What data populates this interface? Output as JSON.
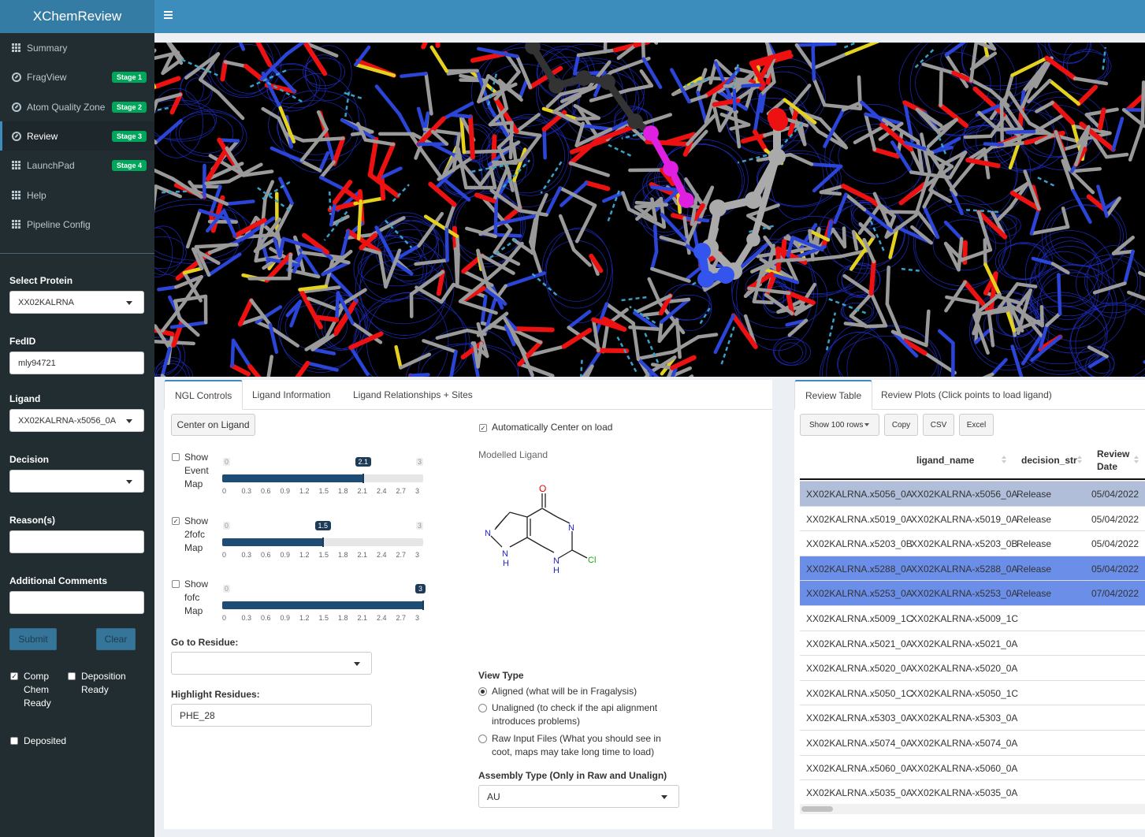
{
  "app": {
    "title": "XChemReview"
  },
  "sidebar": {
    "items": [
      {
        "label": "Summary",
        "icon": "grid-icon",
        "badge": ""
      },
      {
        "label": "FragView",
        "icon": "gauge-icon",
        "badge": "Stage 1"
      },
      {
        "label": "Atom Quality Zone",
        "icon": "gauge-icon",
        "badge": "Stage 2"
      },
      {
        "label": "Review",
        "icon": "gauge-icon",
        "badge": "Stage 3"
      },
      {
        "label": "LaunchPad",
        "icon": "grid-icon",
        "badge": "Stage 4"
      },
      {
        "label": "Help",
        "icon": "grid-icon",
        "badge": ""
      },
      {
        "label": "Pipeline Config",
        "icon": "grid-icon",
        "badge": ""
      }
    ],
    "active_index": 3,
    "form": {
      "protein_label": "Select Protein",
      "protein_value": "XX02KALRNA",
      "fedid_label": "FedID",
      "fedid_value": "mly94721",
      "ligand_label": "Ligand",
      "ligand_value": "XX02KALRNA-x5056_0A",
      "decision_label": "Decision",
      "decision_value": "",
      "reasons_label": "Reason(s)",
      "reasons_value": "",
      "comments_label": "Additional Comments",
      "comments_value": "",
      "submit_label": "Submit",
      "clear_label": "Clear",
      "comp_chem_label": "Comp Chem Ready",
      "comp_chem_checked": true,
      "deposition_label": "Deposition Ready",
      "deposition_checked": false,
      "deposited_label": "Deposited",
      "deposited_checked": false
    }
  },
  "controls": {
    "tabs": [
      "NGL Controls",
      "Ligand Information",
      "Ligand Relationships + Sites"
    ],
    "active_tab": 0,
    "center_button": "Center on Ligand",
    "auto_center_label": "Automatically Center on load",
    "auto_center_checked": true,
    "modelled_ligand_label": "Modelled Ligand",
    "sliders": [
      {
        "label": "Show Event Map",
        "checked": false,
        "min": "0",
        "max": "3",
        "value": "2.1",
        "fraction": 0.7
      },
      {
        "label": "Show 2fofc Map",
        "checked": true,
        "min": "0",
        "max": "3",
        "value": "1.5",
        "fraction": 0.5
      },
      {
        "label": "Show fofc Map",
        "checked": false,
        "min": "0",
        "max": "3",
        "value": "3",
        "fraction": 1.0
      }
    ],
    "ticks": [
      "0",
      "0.3",
      "0.6",
      "0.9",
      "1.2",
      "1.5",
      "1.8",
      "2.1",
      "2.4",
      "2.7",
      "3"
    ],
    "goto_label": "Go to Residue:",
    "goto_value": "",
    "highlight_label": "Highlight Residues:",
    "highlight_value": "PHE_28",
    "view_type_label": "View Type",
    "view_types": [
      {
        "label": "Aligned (what will be in Fragalysis)",
        "selected": true
      },
      {
        "label": "Unaligned (to check if the api alignment introduces problems)",
        "selected": false
      },
      {
        "label": "Raw Input Files (What you should see in coot, maps may take long time to load)",
        "selected": false
      }
    ],
    "assembly_label": "Assembly Type (Only in Raw and Unalign)",
    "assembly_value": "AU",
    "molecule_atoms": {
      "o": "O",
      "n1": "N",
      "n2": "N",
      "n3": "N",
      "n4": "N",
      "h1": "H",
      "h2": "H",
      "cl": "Cl"
    }
  },
  "review": {
    "tabs": [
      "Review Table",
      "Review Plots (Click points to load ligand)"
    ],
    "active_tab": 0,
    "buttons": {
      "show_rows": "Show 100 rows",
      "copy": "Copy",
      "csv": "CSV",
      "excel": "Excel"
    },
    "columns": [
      "",
      "ligand_name",
      "decision_str",
      "Review Date"
    ],
    "rows": [
      {
        "id": "XX02KALRNA.x5056_0A",
        "ligand": "XX02KALRNA-x5056_0A",
        "decision": "Release",
        "date": "05/04/2022",
        "selected": "light"
      },
      {
        "id": "XX02KALRNA.x5019_0A",
        "ligand": "XX02KALRNA-x5019_0A",
        "decision": "Release",
        "date": "05/04/2022",
        "selected": ""
      },
      {
        "id": "XX02KALRNA.x5203_0B",
        "ligand": "XX02KALRNA-x5203_0B",
        "decision": "Release",
        "date": "05/04/2022",
        "selected": ""
      },
      {
        "id": "XX02KALRNA.x5288_0A",
        "ligand": "XX02KALRNA-x5288_0A",
        "decision": "Release",
        "date": "05/04/2022",
        "selected": "dark"
      },
      {
        "id": "XX02KALRNA.x5253_0A",
        "ligand": "XX02KALRNA-x5253_0A",
        "decision": "Release",
        "date": "07/04/2022",
        "selected": "dark"
      },
      {
        "id": "XX02KALRNA.x5009_1C",
        "ligand": "XX02KALRNA-x5009_1C",
        "decision": "",
        "date": "",
        "selected": ""
      },
      {
        "id": "XX02KALRNA.x5021_0A",
        "ligand": "XX02KALRNA-x5021_0A",
        "decision": "",
        "date": "",
        "selected": ""
      },
      {
        "id": "XX02KALRNA.x5020_0A",
        "ligand": "XX02KALRNA-x5020_0A",
        "decision": "",
        "date": "",
        "selected": ""
      },
      {
        "id": "XX02KALRNA.x5050_1C",
        "ligand": "XX02KALRNA-x5050_1C",
        "decision": "",
        "date": "",
        "selected": ""
      },
      {
        "id": "XX02KALRNA.x5303_0A",
        "ligand": "XX02KALRNA-x5303_0A",
        "decision": "",
        "date": "",
        "selected": ""
      },
      {
        "id": "XX02KALRNA.x5074_0A",
        "ligand": "XX02KALRNA-x5074_0A",
        "decision": "",
        "date": "",
        "selected": ""
      },
      {
        "id": "XX02KALRNA.x5060_0A",
        "ligand": "XX02KALRNA-x5060_0A",
        "decision": "",
        "date": "",
        "selected": ""
      },
      {
        "id": "XX02KALRNA.x5035_0A",
        "ligand": "XX02KALRNA-x5035_0A",
        "decision": "",
        "date": "",
        "selected": ""
      }
    ]
  },
  "colors": {
    "header": "#3c8dbc",
    "logo": "#357ca5",
    "sidebar": "#222d32",
    "badge": "#00a65a",
    "row_selected_light": "#b0bed9",
    "row_selected_dark": "#6b8fe8",
    "slider_fill": "#1d4d75"
  }
}
